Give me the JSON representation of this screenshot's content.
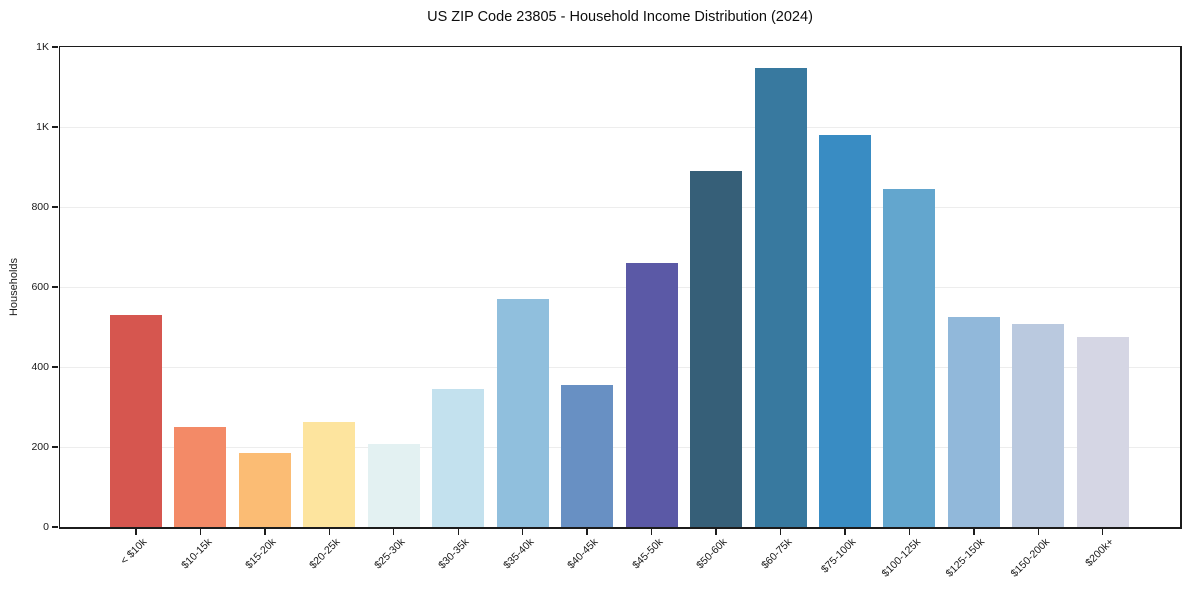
{
  "title": "US ZIP Code 23805 - Household Income Distribution (2024)",
  "chart_data": {
    "type": "bar",
    "title": "US ZIP Code 23805 - Household Income Distribution (2024)",
    "xlabel": "",
    "ylabel": "Households",
    "categories": [
      "< $10k",
      "$10-15k",
      "$15-20k",
      "$20-25k",
      "$25-30k",
      "$30-35k",
      "$35-40k",
      "$40-45k",
      "$45-50k",
      "$50-60k",
      "$60-75k",
      "$75-100k",
      "$100-125k",
      "$125-150k",
      "$150-200k",
      "$200k+"
    ],
    "values": [
      529,
      250,
      186,
      263,
      208,
      346,
      569,
      354,
      661,
      891,
      1148,
      981,
      845,
      526,
      508,
      476
    ],
    "bar_colors": [
      "#d6564f",
      "#f38a67",
      "#fbbc74",
      "#fde49e",
      "#e3f1f2",
      "#c3e1ee",
      "#90bfdd",
      "#6890c3",
      "#5b59a6",
      "#365f78",
      "#38799f",
      "#398cc3",
      "#63a6ce",
      "#91b8da",
      "#bac9df",
      "#d5d6e4"
    ],
    "ylim": [
      0,
      1200
    ],
    "yticks": [
      {
        "value": 0,
        "label": "0"
      },
      {
        "value": 200,
        "label": "200"
      },
      {
        "value": 400,
        "label": "400"
      },
      {
        "value": 600,
        "label": "600"
      },
      {
        "value": 800,
        "label": "800"
      },
      {
        "value": 1000,
        "label": "1K"
      },
      {
        "value": 1200,
        "label": "1K"
      }
    ],
    "gridlines_at": [
      200,
      400,
      600,
      800,
      1000
    ],
    "grid": "horizontal",
    "legend_position": "none"
  }
}
